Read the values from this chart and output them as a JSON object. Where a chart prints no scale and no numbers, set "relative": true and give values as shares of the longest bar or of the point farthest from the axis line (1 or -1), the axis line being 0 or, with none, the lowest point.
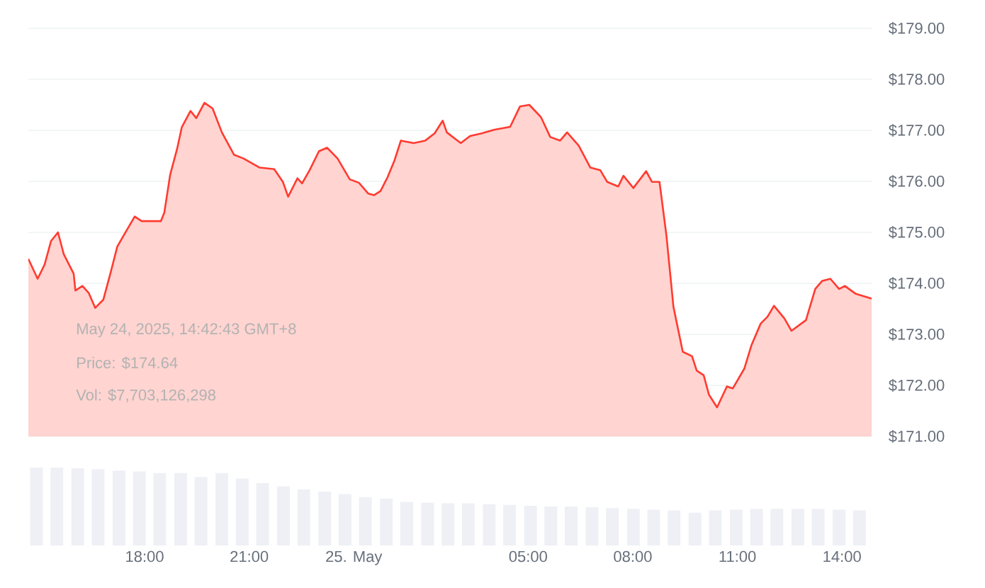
{
  "chart_data": [
    {
      "type": "area",
      "color": "#ff3b30",
      "x": [
        "2025-05-24T14:40",
        "2025-05-24T14:56",
        "2025-05-24T15:08",
        "2025-05-24T15:19",
        "2025-05-24T15:31",
        "2025-05-24T15:41",
        "2025-05-24T15:58",
        "2025-05-24T16:01",
        "2025-05-24T16:13",
        "2025-05-24T16:24",
        "2025-05-24T16:35",
        "2025-05-24T16:49",
        "2025-05-24T17:02",
        "2025-05-24T17:13",
        "2025-05-24T17:24",
        "2025-05-24T17:43",
        "2025-05-24T17:55",
        "2025-05-24T18:28",
        "2025-05-24T18:34",
        "2025-05-24T18:44",
        "2025-05-24T18:56",
        "2025-05-24T19:04",
        "2025-05-24T19:19",
        "2025-05-24T19:29",
        "2025-05-24T19:43",
        "2025-05-24T19:57",
        "2025-05-24T20:13",
        "2025-05-24T20:34",
        "2025-05-24T20:50",
        "2025-05-24T21:18",
        "2025-05-24T21:43",
        "2025-05-24T21:58",
        "2025-05-24T22:07",
        "2025-05-24T22:23",
        "2025-05-24T22:31",
        "2025-05-24T22:44",
        "2025-05-24T23:00",
        "2025-05-24T23:14",
        "2025-05-24T23:32",
        "2025-05-24T23:53",
        "2025-05-25T00:09",
        "2025-05-25T00:25",
        "2025-05-25T00:35",
        "2025-05-25T00:46",
        "2025-05-25T00:58",
        "2025-05-25T01:10",
        "2025-05-25T01:21",
        "2025-05-25T01:43",
        "2025-05-25T02:03",
        "2025-05-25T02:19",
        "2025-05-25T02:33",
        "2025-05-25T02:40",
        "2025-05-25T03:04",
        "2025-05-25T03:20",
        "2025-05-25T03:40",
        "2025-05-25T04:01",
        "2025-05-25T04:29",
        "2025-05-25T04:46",
        "2025-05-25T05:02",
        "2025-05-25T05:22",
        "2025-05-25T05:38",
        "2025-05-25T05:55",
        "2025-05-25T06:07",
        "2025-05-25T06:27",
        "2025-05-25T06:47",
        "2025-05-25T07:04",
        "2025-05-25T07:16",
        "2025-05-25T07:35",
        "2025-05-25T07:44",
        "2025-05-25T08:01",
        "2025-05-25T08:23",
        "2025-05-25T08:33",
        "2025-05-25T08:46",
        "2025-05-25T08:58",
        "2025-05-25T09:10",
        "2025-05-25T09:26",
        "2025-05-25T09:42",
        "2025-05-25T09:50",
        "2025-05-25T10:02",
        "2025-05-25T10:11",
        "2025-05-25T10:25",
        "2025-05-25T10:42",
        "2025-05-25T10:52",
        "2025-05-25T11:12",
        "2025-05-25T11:24",
        "2025-05-25T11:40",
        "2025-05-25T11:52",
        "2025-05-25T12:03",
        "2025-05-25T12:21",
        "2025-05-25T12:33",
        "2025-05-25T12:58",
        "2025-05-25T13:14",
        "2025-05-25T13:26",
        "2025-05-25T13:40",
        "2025-05-25T13:55",
        "2025-05-25T14:05",
        "2025-05-25T14:23",
        "2025-05-25T14:51"
      ],
      "values": [
        174.48,
        174.09,
        174.37,
        174.83,
        175.0,
        174.57,
        174.19,
        173.86,
        173.95,
        173.81,
        173.52,
        173.68,
        174.23,
        174.72,
        174.94,
        175.31,
        175.22,
        175.22,
        175.39,
        176.13,
        176.64,
        177.06,
        177.38,
        177.24,
        177.54,
        177.43,
        176.96,
        176.52,
        176.45,
        176.27,
        176.24,
        175.99,
        175.7,
        176.06,
        175.96,
        176.22,
        176.59,
        176.66,
        176.45,
        176.04,
        175.97,
        175.76,
        175.73,
        175.81,
        176.08,
        176.41,
        176.8,
        176.75,
        176.8,
        176.94,
        177.19,
        176.96,
        176.75,
        176.89,
        176.94,
        177.01,
        177.07,
        177.47,
        177.5,
        177.26,
        176.87,
        176.8,
        176.96,
        176.7,
        176.27,
        176.22,
        175.99,
        175.9,
        176.11,
        175.87,
        176.2,
        175.99,
        175.99,
        174.93,
        173.54,
        172.66,
        172.57,
        172.29,
        172.2,
        171.82,
        171.57,
        171.98,
        171.94,
        172.33,
        172.78,
        173.21,
        173.35,
        173.56,
        173.31,
        173.07,
        173.28,
        173.89,
        174.05,
        174.09,
        173.89,
        173.95,
        173.8,
        173.7
      ],
      "xlim": [
        "2025-05-24T14:40",
        "2025-05-25T14:51"
      ],
      "ylim": [
        171,
        179
      ],
      "yticks": [
        {
          "value": 171,
          "label": "$171.00"
        },
        {
          "value": 172,
          "label": "$172.00"
        },
        {
          "value": 173,
          "label": "$173.00"
        },
        {
          "value": 174,
          "label": "$174.00"
        },
        {
          "value": 175,
          "label": "$175.00"
        },
        {
          "value": 176,
          "label": "$176.00"
        },
        {
          "value": 177,
          "label": "$177.00"
        },
        {
          "value": 178,
          "label": "$178.00"
        },
        {
          "value": 179,
          "label": "$179.00"
        }
      ],
      "grid": "y",
      "tick_labels": "y",
      "annotations": [
        "May 24, 2025, 14:42:43 GMT+8",
        "Price: $174.64",
        "Vol: $7,703,126,298"
      ]
    },
    {
      "type": "bar",
      "color": "#eef0f5",
      "relative": true,
      "x": [
        "2025-05-24T14:54",
        "2025-05-24T15:29",
        "2025-05-24T16:05",
        "2025-05-24T16:40",
        "2025-05-24T17:16",
        "2025-05-24T17:51",
        "2025-05-24T18:26",
        "2025-05-24T19:02",
        "2025-05-24T19:37",
        "2025-05-24T20:13",
        "2025-05-24T20:48",
        "2025-05-24T21:23",
        "2025-05-24T21:59",
        "2025-05-24T22:34",
        "2025-05-24T23:10",
        "2025-05-24T23:45",
        "2025-05-25T00:20",
        "2025-05-25T00:56",
        "2025-05-25T01:31",
        "2025-05-25T02:07",
        "2025-05-25T02:42",
        "2025-05-25T03:17",
        "2025-05-25T03:53",
        "2025-05-25T04:28",
        "2025-05-25T05:04",
        "2025-05-25T05:39",
        "2025-05-25T06:14",
        "2025-05-25T06:50",
        "2025-05-25T07:25",
        "2025-05-25T08:01",
        "2025-05-25T08:36",
        "2025-05-25T09:11",
        "2025-05-25T09:47",
        "2025-05-25T10:22",
        "2025-05-25T10:58",
        "2025-05-25T11:33",
        "2025-05-25T12:08",
        "2025-05-25T12:44",
        "2025-05-25T13:19",
        "2025-05-25T13:55",
        "2025-05-25T14:30"
      ],
      "values": [
        1.0,
        1.0,
        0.99,
        0.98,
        0.96,
        0.95,
        0.93,
        0.93,
        0.88,
        0.93,
        0.86,
        0.8,
        0.76,
        0.72,
        0.69,
        0.66,
        0.62,
        0.6,
        0.56,
        0.55,
        0.54,
        0.54,
        0.53,
        0.52,
        0.51,
        0.5,
        0.5,
        0.49,
        0.48,
        0.47,
        0.46,
        0.45,
        0.42,
        0.45,
        0.46,
        0.47,
        0.47,
        0.47,
        0.47,
        0.46,
        0.45
      ],
      "xlim": [
        "2025-05-24T14:40",
        "2025-05-25T14:51"
      ],
      "xticks": [
        {
          "value": "2025-05-24T18:00",
          "label": "18:00"
        },
        {
          "value": "2025-05-24T21:00",
          "label": "21:00"
        },
        {
          "value": "2025-05-25T00:00",
          "label": "25. May"
        },
        {
          "value": "2025-05-25T05:00",
          "label": "05:00"
        },
        {
          "value": "2025-05-25T08:00",
          "label": "08:00"
        },
        {
          "value": "2025-05-25T11:00",
          "label": "11:00"
        },
        {
          "value": "2025-05-25T14:00",
          "label": "14:00"
        }
      ],
      "tick_labels": "x"
    }
  ]
}
